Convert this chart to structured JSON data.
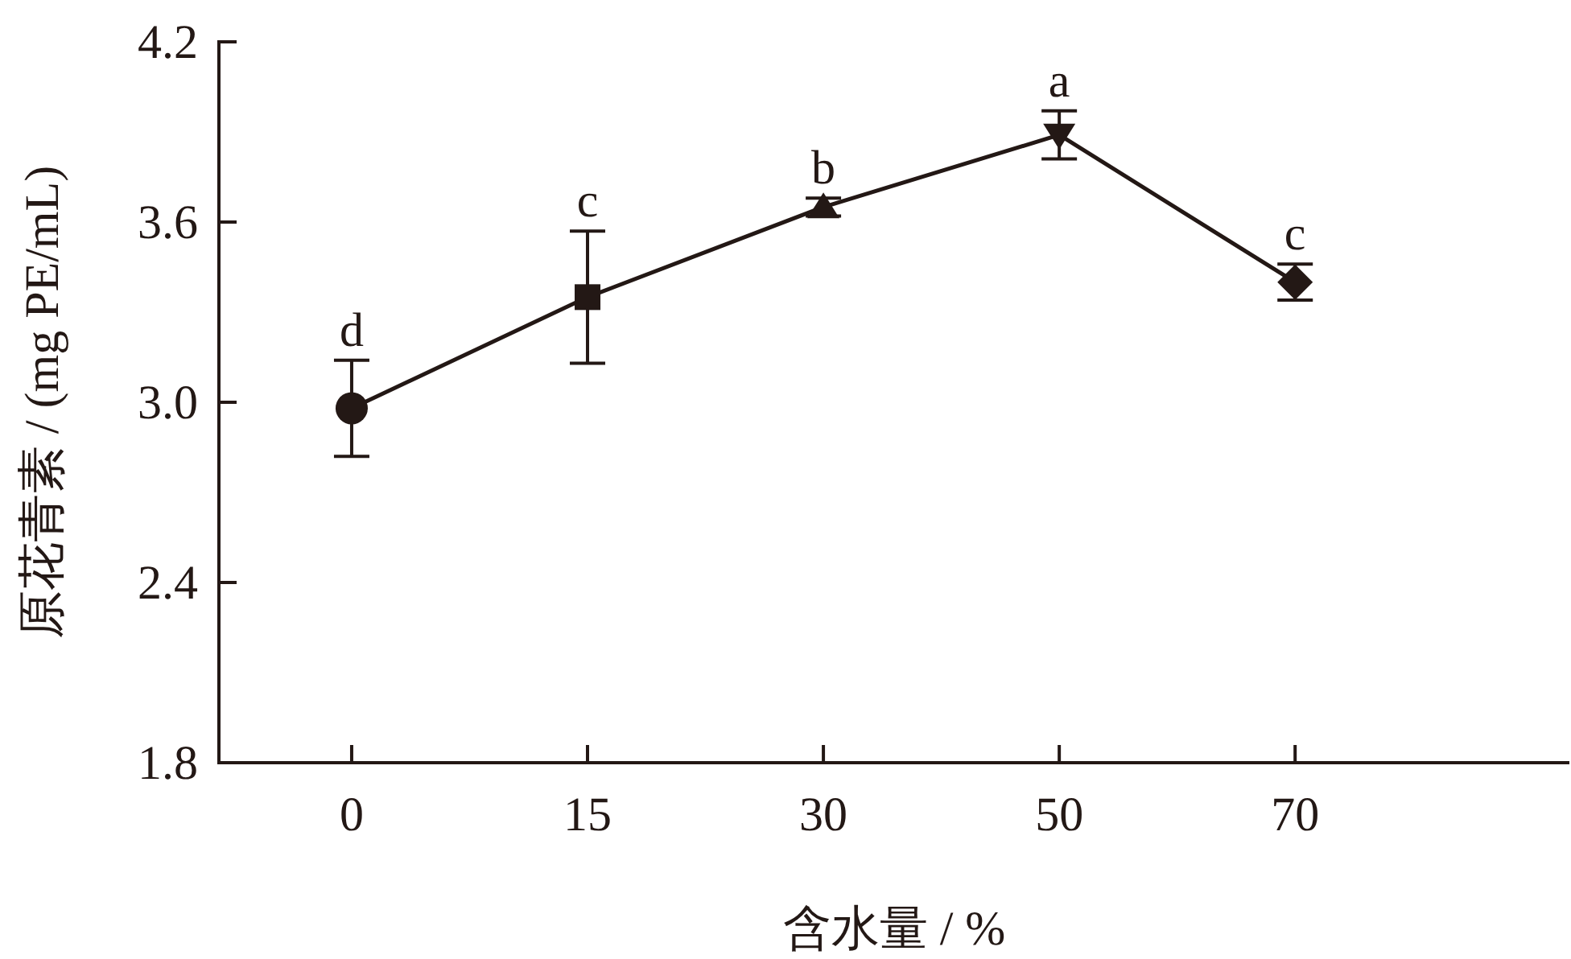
{
  "chart_data": {
    "type": "line",
    "xlabel": "含水量 / %",
    "ylabel": "原花青素 / (mg PE/mL)",
    "categories": [
      "0",
      "15",
      "30",
      "50",
      "70"
    ],
    "series": [
      {
        "color": "#231815",
        "values": [
          2.98,
          3.35,
          3.65,
          3.89,
          3.4
        ],
        "errors": [
          0.16,
          0.22,
          0.03,
          0.08,
          0.06
        ],
        "marker": [
          "circle",
          "square",
          "triangle",
          "triangle-down",
          "diamond"
        ],
        "line_style": "solid"
      }
    ],
    "ylim": [
      1.8,
      4.2
    ],
    "yticks": [
      {
        "value": 1.8,
        "label": "1.8"
      },
      {
        "value": 2.4,
        "label": "2.4"
      },
      {
        "value": 3.0,
        "label": "3.0"
      },
      {
        "value": 3.6,
        "label": "3.6"
      },
      {
        "value": 4.2,
        "label": "4.2"
      }
    ],
    "annotations": [
      {
        "text": "d",
        "x": "0",
        "y": 3.14
      },
      {
        "text": "c",
        "x": "15",
        "y": 3.57
      },
      {
        "text": "b",
        "x": "30",
        "y": 3.68
      },
      {
        "text": "a",
        "x": "50",
        "y": 3.97
      },
      {
        "text": "c",
        "x": "70",
        "y": 3.46
      }
    ],
    "grid": false
  }
}
